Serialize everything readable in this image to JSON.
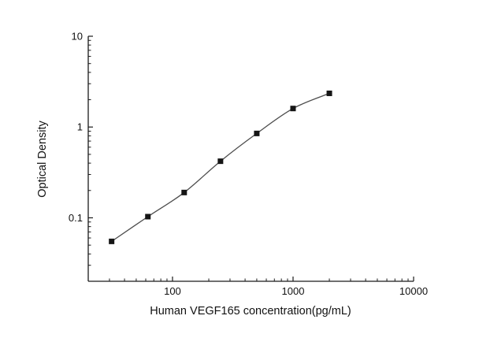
{
  "chart_data": {
    "type": "line",
    "title": "",
    "xlabel": "Human VEGF165 concentration(pg/mL)",
    "ylabel": "Optical Density",
    "xscale": "log",
    "yscale": "log",
    "xlim": [
      20,
      10000
    ],
    "ylim": [
      0.02,
      10
    ],
    "x": [
      31.25,
      62.5,
      125,
      250,
      500,
      1000,
      2000
    ],
    "y": [
      0.055,
      0.103,
      0.19,
      0.42,
      0.85,
      1.6,
      2.35
    ],
    "x_major_ticks": [
      {
        "value": 100,
        "label": "100"
      },
      {
        "value": 1000,
        "label": "1000"
      },
      {
        "value": 10000,
        "label": "10000"
      }
    ],
    "y_major_ticks": [
      {
        "value": 0.1,
        "label": "0.1"
      },
      {
        "value": 1,
        "label": "1"
      },
      {
        "value": 10,
        "label": "10"
      }
    ],
    "marker": "filled-square",
    "marker_size": 7,
    "grid": "off",
    "legend": "none",
    "colors": {
      "axis": "#1a1a1a",
      "line": "#4d4d4d",
      "marker": "#151515",
      "background": "#ffffff",
      "text": "#111111"
    }
  }
}
